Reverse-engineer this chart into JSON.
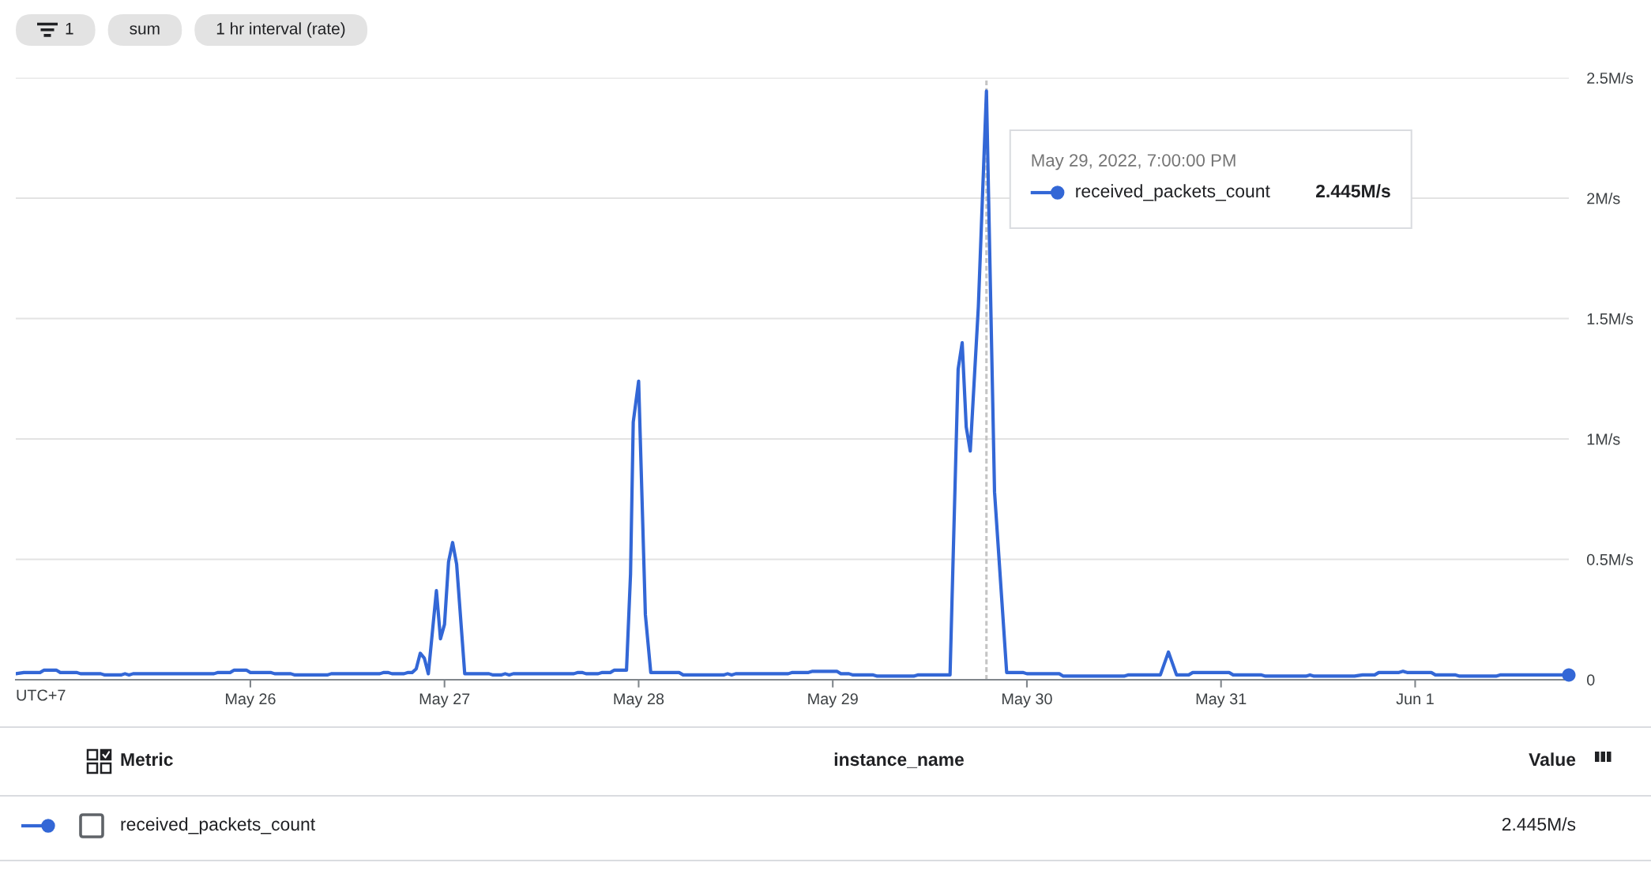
{
  "chart_data": {
    "type": "line",
    "xlabel": "UTC+7",
    "x": [
      "2022-05-24T19:00",
      "2022-05-24T20:00",
      "2022-05-24T22:00",
      "2022-05-24T22:30",
      "2022-05-25T00:00",
      "2022-05-25T00:30",
      "2022-05-25T02:30",
      "2022-05-25T03:00",
      "2022-05-25T05:30",
      "2022-05-25T06:00",
      "2022-05-25T08:00",
      "2022-05-25T08:30",
      "2022-05-25T09:00",
      "2022-05-25T09:30",
      "2022-05-25T19:30",
      "2022-05-25T20:00",
      "2022-05-25T21:30",
      "2022-05-25T22:00",
      "2022-05-25T23:30",
      "2022-05-26T00:00",
      "2022-05-26T02:30",
      "2022-05-26T03:00",
      "2022-05-26T05:00",
      "2022-05-26T05:30",
      "2022-05-26T09:30",
      "2022-05-26T10:00",
      "2022-05-26T16:00",
      "2022-05-26T16:30",
      "2022-05-26T17:00",
      "2022-05-26T17:30",
      "2022-05-26T19:00",
      "2022-05-26T19:30",
      "2022-05-26T20:00",
      "2022-05-26T20:30",
      "2022-05-26T21:00",
      "2022-05-26T21:30",
      "2022-05-26T22:00",
      "2022-05-26T23:00",
      "2022-05-26T23:30",
      "2022-05-27T00:00",
      "2022-05-27T00:30",
      "2022-05-27T01:00",
      "2022-05-27T01:30",
      "2022-05-27T02:30",
      "2022-05-27T05:30",
      "2022-05-27T06:00",
      "2022-05-27T07:00",
      "2022-05-27T07:30",
      "2022-05-27T08:00",
      "2022-05-27T08:30",
      "2022-05-27T16:00",
      "2022-05-27T16:30",
      "2022-05-27T17:00",
      "2022-05-27T17:30",
      "2022-05-27T19:00",
      "2022-05-27T19:30",
      "2022-05-27T20:30",
      "2022-05-27T21:00",
      "2022-05-27T22:30",
      "2022-05-27T23:00",
      "2022-05-27T23:20",
      "2022-05-28T00:00",
      "2022-05-28T00:50",
      "2022-05-28T01:30",
      "2022-05-28T05:00",
      "2022-05-28T05:30",
      "2022-05-28T10:30",
      "2022-05-28T11:00",
      "2022-05-28T11:30",
      "2022-05-28T12:00",
      "2022-05-28T18:30",
      "2022-05-28T19:00",
      "2022-05-28T21:00",
      "2022-05-28T21:30",
      "2022-05-29T00:30",
      "2022-05-29T01:00",
      "2022-05-29T02:00",
      "2022-05-29T02:30",
      "2022-05-29T05:00",
      "2022-05-29T05:30",
      "2022-05-29T10:00",
      "2022-05-29T10:30",
      "2022-05-29T14:30",
      "2022-05-29T15:30",
      "2022-05-29T16:00",
      "2022-05-29T16:30",
      "2022-05-29T17:00",
      "2022-05-29T18:00",
      "2022-05-29T19:00",
      "2022-05-29T20:00",
      "2022-05-29T21:00",
      "2022-05-29T21:30",
      "2022-05-29T23:30",
      "2022-05-30T00:00",
      "2022-05-30T04:00",
      "2022-05-30T04:30",
      "2022-05-30T12:00",
      "2022-05-30T12:30",
      "2022-05-30T16:30",
      "2022-05-30T17:30",
      "2022-05-30T18:30",
      "2022-05-30T20:00",
      "2022-05-30T20:30",
      "2022-05-31T01:00",
      "2022-05-31T01:30",
      "2022-05-31T05:00",
      "2022-05-31T05:30",
      "2022-05-31T10:30",
      "2022-05-31T11:00",
      "2022-05-31T11:30",
      "2022-05-31T16:30",
      "2022-05-31T17:30",
      "2022-05-31T19:00",
      "2022-05-31T19:30",
      "2022-05-31T22:00",
      "2022-05-31T22:30",
      "2022-05-31T23:00",
      "2022-06-01T02:00",
      "2022-06-01T02:30",
      "2022-06-01T05:00",
      "2022-06-01T05:30",
      "2022-06-01T10:00",
      "2022-06-01T10:30",
      "2022-06-01T19:00"
    ],
    "series": [
      {
        "name": "received_packets_count",
        "color": "#3367d6",
        "values": [
          0.025,
          0.03,
          0.03,
          0.04,
          0.04,
          0.03,
          0.03,
          0.025,
          0.025,
          0.02,
          0.02,
          0.025,
          0.02,
          0.025,
          0.025,
          0.03,
          0.03,
          0.04,
          0.04,
          0.03,
          0.03,
          0.025,
          0.025,
          0.02,
          0.02,
          0.025,
          0.025,
          0.03,
          0.03,
          0.025,
          0.025,
          0.03,
          0.03,
          0.045,
          0.11,
          0.09,
          0.025,
          0.37,
          0.17,
          0.23,
          0.49,
          0.57,
          0.48,
          0.025,
          0.025,
          0.02,
          0.02,
          0.025,
          0.02,
          0.025,
          0.025,
          0.03,
          0.03,
          0.025,
          0.025,
          0.03,
          0.03,
          0.04,
          0.04,
          0.44,
          1.07,
          1.24,
          0.27,
          0.03,
          0.03,
          0.02,
          0.02,
          0.025,
          0.02,
          0.025,
          0.025,
          0.03,
          0.03,
          0.035,
          0.035,
          0.025,
          0.025,
          0.02,
          0.02,
          0.015,
          0.015,
          0.02,
          0.02,
          1.29,
          1.4,
          1.05,
          0.95,
          1.55,
          2.445,
          0.78,
          0.28,
          0.03,
          0.03,
          0.025,
          0.025,
          0.015,
          0.015,
          0.02,
          0.02,
          0.115,
          0.02,
          0.02,
          0.03,
          0.03,
          0.02,
          0.02,
          0.015,
          0.015,
          0.02,
          0.015,
          0.015,
          0.02,
          0.02,
          0.03,
          0.03,
          0.035,
          0.03,
          0.03,
          0.02,
          0.02,
          0.015,
          0.015,
          0.02,
          0.02
        ]
      },
      {
        "type": "scatter",
        "color": "#3367d6",
        "marker": "circle",
        "x": [
          "2022-06-01T19:00"
        ],
        "values": [
          0.02
        ]
      }
    ],
    "xlim": [
      "2022-05-24T19:00",
      "2022-06-01T19:00"
    ],
    "xticks": [
      {
        "value": "2022-05-26",
        "label": "May 26"
      },
      {
        "value": "2022-05-27",
        "label": "May 27"
      },
      {
        "value": "2022-05-28",
        "label": "May 28"
      },
      {
        "value": "2022-05-29",
        "label": "May 29"
      },
      {
        "value": "2022-05-30",
        "label": "May 30"
      },
      {
        "value": "2022-05-31",
        "label": "May 31"
      },
      {
        "value": "2022-06-01",
        "label": "Jun 1"
      }
    ],
    "ylim": [
      0,
      2.5
    ],
    "yticks": [
      0,
      {
        "value": 0.5,
        "label": "0.5M/s"
      },
      {
        "value": 1,
        "label": "1M/s"
      },
      {
        "value": 1.5,
        "label": "1.5M/s"
      },
      {
        "value": 2,
        "label": "2M/s"
      },
      {
        "value": 2.5,
        "label": "2.5M/s"
      }
    ],
    "grid": "y",
    "legend": "top right",
    "ref_lines": [
      {
        "axis": "x",
        "value": "2022-05-29T19:00",
        "label": "May 29, 2022, 7:00:00 PM",
        "color": "#c4c4c4",
        "line_style": "dashed"
      }
    ],
    "annotations": [
      "1",
      "sum",
      "1 hr interval (rate)",
      "Metric",
      "instance_name",
      "Value",
      "2.445M/s",
      "2.445M/s"
    ]
  }
}
